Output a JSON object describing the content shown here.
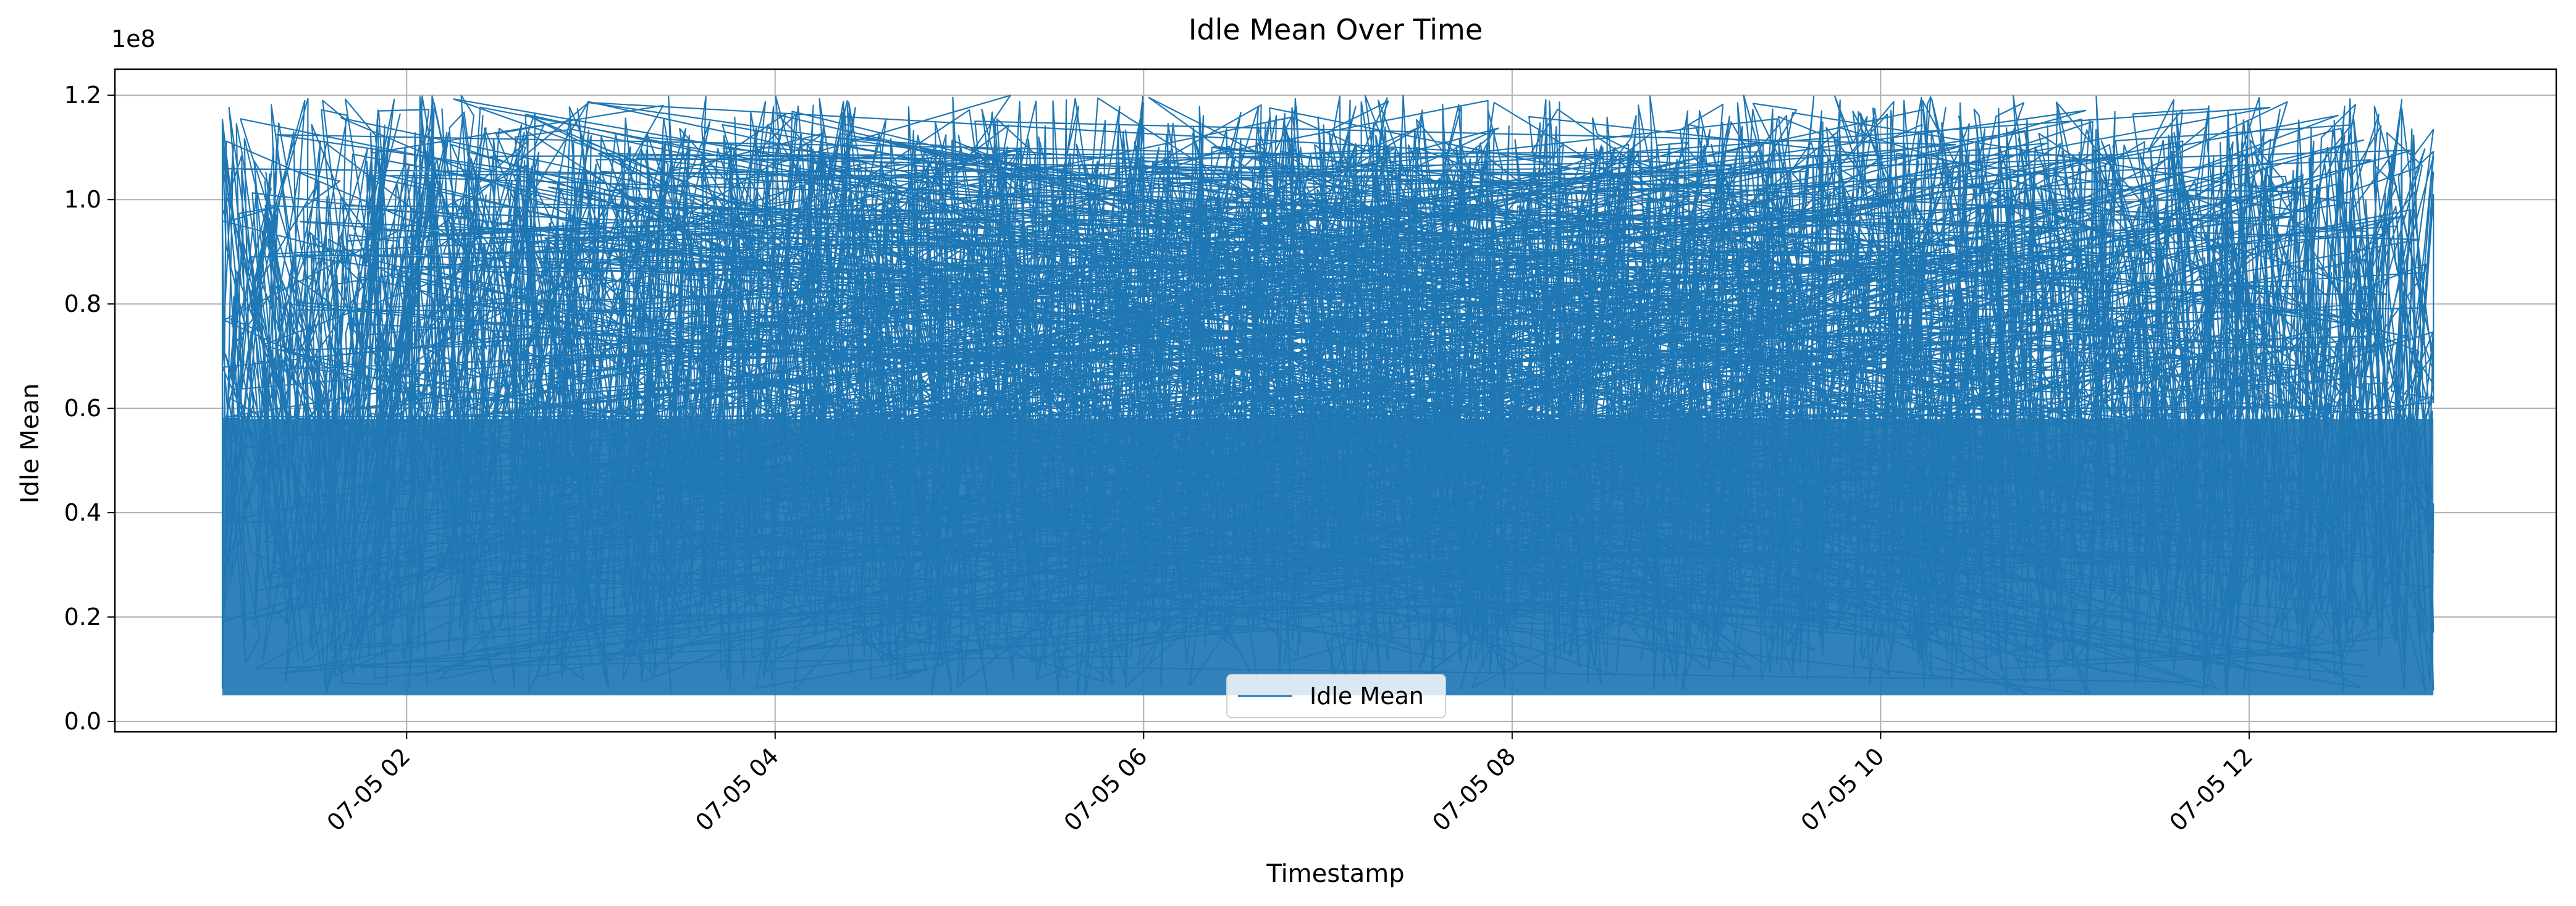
{
  "chart_data": {
    "type": "line",
    "title": "Idle Mean Over Time",
    "xlabel": "Timestamp",
    "ylabel": "Idle Mean",
    "y_offset_label": "1e8",
    "x_ticks": [
      "07-05 02",
      "07-05 04",
      "07-05 06",
      "07-05 08",
      "07-05 10",
      "07-05 12"
    ],
    "y_ticks": [
      "0.0",
      "0.2",
      "0.4",
      "0.6",
      "0.8",
      "1.0",
      "1.2"
    ],
    "xlim": [
      "2024-07-05 00:25",
      "2024-07-05 13:40"
    ],
    "ylim": [
      -0.02,
      1.25
    ],
    "data_range": {
      "x_start": "2024-07-05 01:00",
      "x_end": "2024-07-05 13:00",
      "y_min": 0.05,
      "y_max": 1.2
    },
    "grid": true,
    "legend_position": "lower-center",
    "series": [
      {
        "name": "Idle Mean",
        "color": "#1f77b4"
      }
    ]
  }
}
